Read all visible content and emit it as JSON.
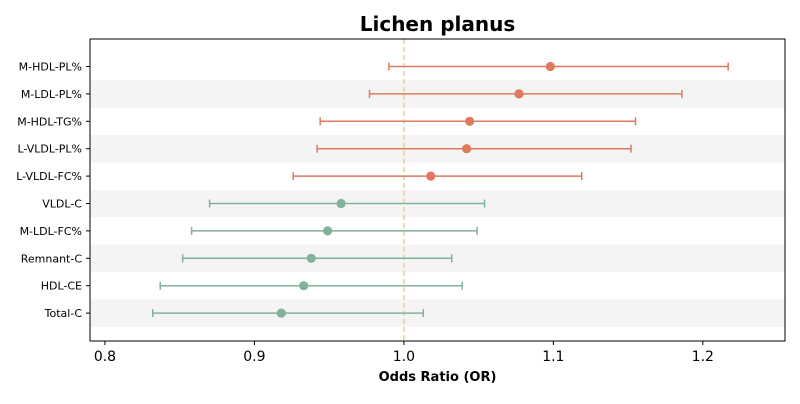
{
  "chart_data": {
    "type": "forest",
    "title": "Lichen planus",
    "xlabel": "Odds Ratio (OR)",
    "ylabel": "",
    "xlim": [
      0.79,
      1.255
    ],
    "xticks": [
      0.8,
      0.9,
      1.0,
      1.1,
      1.2
    ],
    "xtick_labels": [
      "0.8",
      "0.9",
      "1.0",
      "1.1",
      "1.2"
    ],
    "reference_line": 1.0,
    "grid": false,
    "colors": {
      "positive": "#E07A5F",
      "negative": "#81B29A",
      "reference": "#F2CC8F",
      "band": "#F4F4F4"
    },
    "rows": [
      {
        "label": "M-HDL-PL%",
        "or": 1.098,
        "lower": 0.99,
        "upper": 1.217,
        "group": "positive"
      },
      {
        "label": "M-LDL-PL%",
        "or": 1.077,
        "lower": 0.977,
        "upper": 1.186,
        "group": "positive"
      },
      {
        "label": "M-HDL-TG%",
        "or": 1.044,
        "lower": 0.944,
        "upper": 1.155,
        "group": "positive"
      },
      {
        "label": "L-VLDL-PL%",
        "or": 1.042,
        "lower": 0.942,
        "upper": 1.152,
        "group": "positive"
      },
      {
        "label": "L-VLDL-FC%",
        "or": 1.018,
        "lower": 0.926,
        "upper": 1.119,
        "group": "positive"
      },
      {
        "label": "VLDL-C",
        "or": 0.958,
        "lower": 0.87,
        "upper": 1.054,
        "group": "negative"
      },
      {
        "label": "M-LDL-FC%",
        "or": 0.949,
        "lower": 0.858,
        "upper": 1.049,
        "group": "negative"
      },
      {
        "label": "Remnant-C",
        "or": 0.938,
        "lower": 0.852,
        "upper": 1.032,
        "group": "negative"
      },
      {
        "label": "HDL-CE",
        "or": 0.933,
        "lower": 0.837,
        "upper": 1.039,
        "group": "negative"
      },
      {
        "label": "Total-C",
        "or": 0.918,
        "lower": 0.832,
        "upper": 1.013,
        "group": "negative"
      }
    ]
  }
}
